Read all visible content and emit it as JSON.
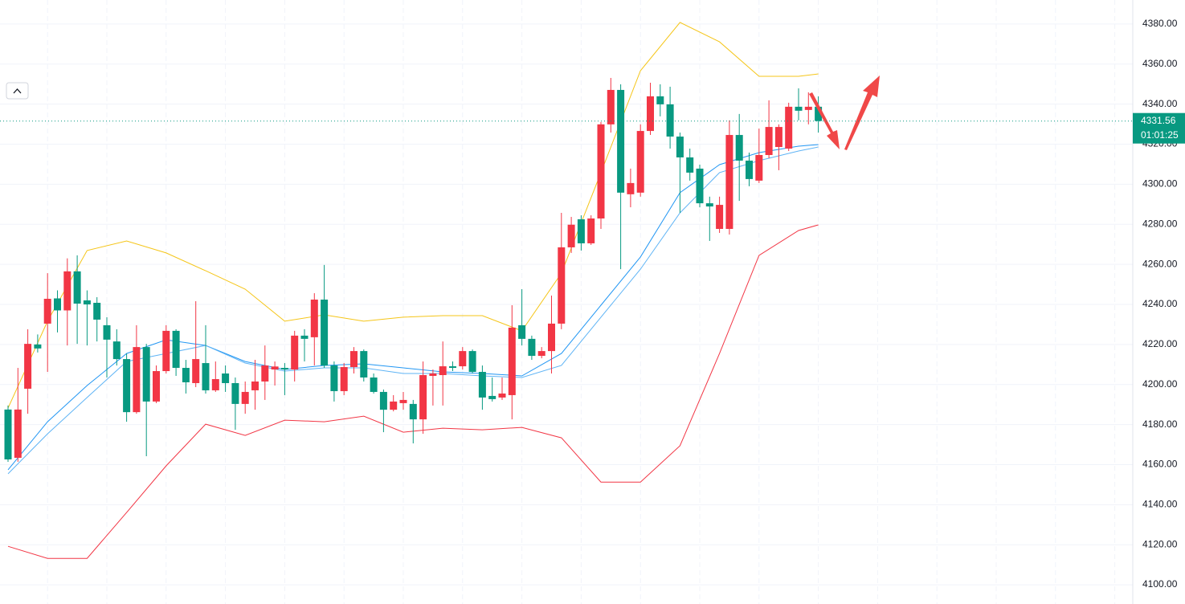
{
  "chart_data": {
    "type": "candlestick",
    "up_color": "#f23645",
    "down_color": "#089981",
    "ylim": [
      4090.4,
      4392
    ],
    "yticks": [
      {
        "value": 4100,
        "label": "4100.00"
      },
      {
        "value": 4120,
        "label": "4120.00"
      },
      {
        "value": 4140,
        "label": "4140.00"
      },
      {
        "value": 4160,
        "label": "4160.00"
      },
      {
        "value": 4180,
        "label": "4180.00"
      },
      {
        "value": 4200,
        "label": "4200.00"
      },
      {
        "value": 4220,
        "label": "4220.00"
      },
      {
        "value": 4240,
        "label": "4240.00"
      },
      {
        "value": 4260,
        "label": "4260.00"
      },
      {
        "value": 4280,
        "label": "4280.00"
      },
      {
        "value": 4300,
        "label": "4300.00"
      },
      {
        "value": 4320,
        "label": "4320.00"
      },
      {
        "value": 4340,
        "label": "4340.00"
      },
      {
        "value": 4360,
        "label": "4360.00"
      },
      {
        "value": 4380,
        "label": "4380.00"
      }
    ],
    "grid": true,
    "open": [
      4187.5,
      4163.4,
      4197.9,
      4220,
      4230.4,
      4243,
      4237,
      4256.5,
      4242,
      4240.8,
      4229.6,
      4221.5,
      4212.7,
      4186.2,
      4218.7,
      4191.5,
      4206.7,
      4226.8,
      4208.3,
      4200.7,
      4210.7,
      4197.1,
      4205.5,
      4200.7,
      4190.3,
      4197.1,
      4201.5,
      4207.5,
      4208.3,
      4207.5,
      4224.4,
      4223.6,
      4242.4,
      4209.5,
      4196.7,
      4208.7,
      4216.7,
      4203.5,
      4196.3,
      4187.4,
      4190.7,
      4190.3,
      4182.6,
      4204.3,
      4204.7,
      4209.1,
      4209.1,
      4216.7,
      4206.3,
      4194.3,
      4193.5,
      4194.7,
      4229.6,
      4222.8,
      4214.3,
      4216.7,
      4230.4,
      4268.5,
      4282.5,
      4270.5,
      4282.9,
      4329.9,
      4347.1,
      4295,
      4295.8,
      4326.6,
      4343.9,
      4339.9,
      4323.8,
      4313.4,
      4307.8,
      4290.5,
      4277.7,
      4277.7,
      4324.6,
      4311.8,
      4301.8,
      4314.6,
      4318.6,
      4317.8,
      4338.7,
      4337.1,
      4338.7
    ],
    "high": [
      4189.5,
      4208.3,
      4227.6,
      4225,
      4255.6,
      4247,
      4263,
      4264.5,
      4247,
      4243.6,
      4233.6,
      4227.6,
      4215.5,
      4229.6,
      4220.3,
      4209.5,
      4229.6,
      4227.6,
      4212.3,
      4241.6,
      4229.6,
      4211.5,
      4209.5,
      4203.5,
      4201.5,
      4212.3,
      4219.5,
      4211.5,
      4210.7,
      4226.8,
      4227.6,
      4245.6,
      4259.7,
      4211.5,
      4210.7,
      4218.7,
      4217.5,
      4205.5,
      4197.5,
      4194.7,
      4196.3,
      4192.3,
      4211.5,
      4207.5,
      4221.5,
      4211.5,
      4218.7,
      4217.5,
      4209.5,
      4203.5,
      4203.5,
      4239.6,
      4247.6,
      4224.4,
      4218.7,
      4244.4,
      4285.7,
      4283.7,
      4284.5,
      4284.5,
      4331.1,
      4353.1,
      4349.9,
      4307.8,
      4329.9,
      4350.7,
      4349.9,
      4348.7,
      4325.8,
      4317.8,
      4309.8,
      4293.8,
      4293.8,
      4331.9,
      4335.1,
      4315.8,
      4327.8,
      4341.9,
      4329.9,
      4340.7,
      4347.9,
      4345.9,
      4343.9
    ],
    "low": [
      4161.4,
      4161.4,
      4185.4,
      4216,
      4206.3,
      4226,
      4219.5,
      4220.3,
      4219.5,
      4221.5,
      4203.5,
      4209.5,
      4181.4,
      4185.4,
      4164.2,
      4190.7,
      4205.5,
      4204.3,
      4195.5,
      4198.7,
      4195.5,
      4196.3,
      4196.3,
      4177.4,
      4185.4,
      4187.4,
      4192.3,
      4199.5,
      4194.7,
      4201.5,
      4211.5,
      4209.5,
      4208.3,
      4191.5,
      4194.7,
      4205.5,
      4201.5,
      4195.5,
      4176.2,
      4186.6,
      4187.4,
      4170.6,
      4175.4,
      4189.5,
      4189.5,
      4206.7,
      4207.5,
      4205.5,
      4187.4,
      4191.5,
      4192.3,
      4182.6,
      4219.5,
      4212.3,
      4213.1,
      4205.5,
      4227.6,
      4265.7,
      4266.9,
      4269.7,
      4277.7,
      4325.8,
      4257.6,
      4288.5,
      4293.8,
      4324.6,
      4333.9,
      4317.8,
      4285.7,
      4301.8,
      4288.5,
      4271.7,
      4275.7,
      4274.9,
      4291.7,
      4299,
      4300.6,
      4313,
      4307,
      4316.6,
      4331.9,
      4329.9,
      4325.8
    ],
    "close": [
      4162.6,
      4187.5,
      4220.3,
      4218,
      4242.8,
      4237,
      4256.5,
      4240.4,
      4240,
      4232.4,
      4222.4,
      4212.7,
      4186.2,
      4218.7,
      4191.5,
      4206.7,
      4226.8,
      4208.3,
      4201.1,
      4212.7,
      4197.1,
      4202.7,
      4200.7,
      4190.3,
      4196.3,
      4201.5,
      4209.5,
      4209,
      4207.5,
      4224.4,
      4222.8,
      4242.4,
      4209.5,
      4196.7,
      4208.7,
      4216.7,
      4203.5,
      4196.3,
      4187.4,
      4191.5,
      4192.3,
      4182.6,
      4204.7,
      4205.5,
      4209.1,
      4208.3,
      4216.7,
      4206.3,
      4193.5,
      4192.7,
      4195.5,
      4228.4,
      4222.8,
      4214.3,
      4216.7,
      4230.4,
      4268.5,
      4279.8,
      4270.5,
      4282.9,
      4329.9,
      4347.1,
      4295.8,
      4300.6,
      4326.6,
      4343.9,
      4339.9,
      4323.8,
      4313.4,
      4305.8,
      4290.5,
      4288.9,
      4289.7,
      4324.6,
      4311.8,
      4302.6,
      4314.6,
      4328.6,
      4328.6,
      4338.7,
      4336.7,
      4338.7,
      4331.56
    ],
    "lines": [
      {
        "color": "#f5c518",
        "x": [
          0,
          4,
          8,
          12,
          16,
          20,
          24,
          28,
          32,
          36,
          40,
          44,
          48,
          52,
          56,
          60,
          64,
          68,
          72,
          76,
          80,
          82
        ],
        "values": [
          4188.2,
          4231.6,
          4266.9,
          4271.7,
          4265.7,
          4256.8,
          4247.6,
          4231.6,
          4234.8,
          4231.6,
          4233.6,
          4234.4,
          4234.4,
          4226.8,
          4255.6,
          4305.8,
          4356.7,
          4380.8,
          4371.1,
          4353.9,
          4353.9,
          4355.1
        ]
      },
      {
        "color": "#f23645",
        "x": [
          0,
          4,
          8,
          12,
          16,
          20,
          24,
          28,
          32,
          36,
          40,
          44,
          48,
          52,
          56,
          60,
          64,
          68,
          72,
          76,
          80,
          82
        ],
        "values": [
          4119.2,
          4113.2,
          4113.2,
          4136.1,
          4159.4,
          4180.2,
          4174.6,
          4182.2,
          4181.4,
          4184.2,
          4176.2,
          4178.2,
          4177.4,
          4178.6,
          4173.4,
          4151.3,
          4151.3,
          4169.4,
          4215.5,
          4264.5,
          4276.9,
          4279.7
        ]
      },
      {
        "color": "#2196f3",
        "x": [
          0,
          4,
          8,
          12,
          16,
          20,
          24,
          28,
          32,
          36,
          40,
          44,
          48,
          52,
          56,
          60,
          64,
          68,
          72,
          76,
          80,
          82
        ],
        "values": [
          4157.4,
          4181.4,
          4199.5,
          4215.5,
          4222.3,
          4219.5,
          4211.5,
          4207.5,
          4209.5,
          4210.3,
          4208.3,
          4206.3,
          4205.5,
          4204.3,
          4215.5,
          4239.6,
          4263.7,
          4295.8,
          4309.8,
          4315.8,
          4319,
          4319.8
        ]
      },
      {
        "color": "#5fb4f5",
        "x": [
          0,
          4,
          8,
          12,
          16,
          20,
          24,
          28,
          32,
          36,
          40,
          44,
          48,
          52,
          56,
          60,
          64,
          68,
          72,
          76,
          80,
          82
        ],
        "values": [
          4155.4,
          4175.4,
          4193.5,
          4211.5,
          4215.5,
          4219.5,
          4210.7,
          4206.7,
          4208.3,
          4208.3,
          4205.5,
          4205.5,
          4204.3,
          4203.5,
          4209.5,
          4233.6,
          4257.6,
          4285.7,
          4305.8,
          4311.8,
          4316.6,
          4318.6
        ]
      }
    ],
    "last_price": 4331.56,
    "countdown": "01:01:25"
  }
}
